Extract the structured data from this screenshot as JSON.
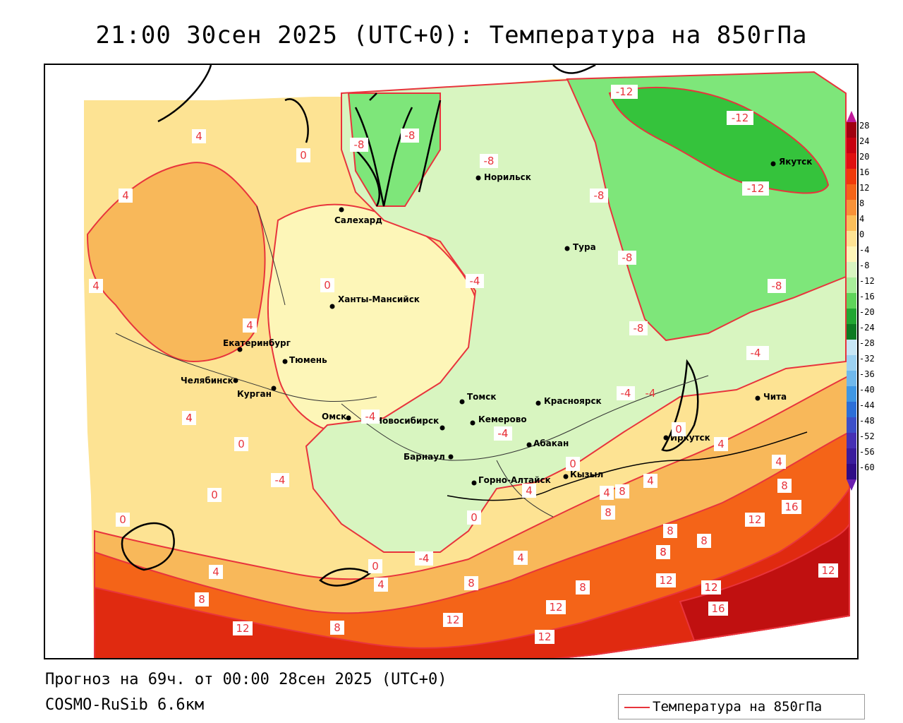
{
  "title": "21:00 30сен 2025 (UTC+0): Температура на 850гПа",
  "forecast": "Прогноз на 69ч. от 00:00 28сен 2025 (UTC+0)",
  "model": "COSMO-RuSib 6.6км",
  "legend": {
    "label": "Температура на 850гПа",
    "color": "#e8343c"
  },
  "colorbar": {
    "ticks": [
      "28",
      "24",
      "20",
      "16",
      "12",
      "8",
      "4",
      "0",
      "-4",
      "-8",
      "-12",
      "-16",
      "-20",
      "-24",
      "-28",
      "-32",
      "-36",
      "-40",
      "-44",
      "-48",
      "-52",
      "-56",
      "-60"
    ],
    "colors": [
      "#a00010",
      "#c80010",
      "#e01010",
      "#f03a0a",
      "#f46418",
      "#f89238",
      "#fbbf5a",
      "#fde393",
      "#fdf6b8",
      "#d8f5c0",
      "#a8ee9a",
      "#5fd45a",
      "#22a632",
      "#0d7a22",
      "#c7e6f5",
      "#9dd2f2",
      "#6fb8ec",
      "#3f97e4",
      "#2c6fd8",
      "#3c4fc8",
      "#4630b4",
      "#3a1c9c",
      "#2e0c86"
    ]
  },
  "cities": [
    {
      "name": "Якутск"
    },
    {
      "name": "Норильск"
    },
    {
      "name": "Салехард"
    },
    {
      "name": "Тура"
    },
    {
      "name": "Ханты-Мансийск"
    },
    {
      "name": "Екатеринбург"
    },
    {
      "name": "Тюмень"
    },
    {
      "name": "Челябинск"
    },
    {
      "name": "Курган"
    },
    {
      "name": "Омск"
    },
    {
      "name": "Новосибирск"
    },
    {
      "name": "Томск"
    },
    {
      "name": "Красноярск"
    },
    {
      "name": "Кемерово"
    },
    {
      "name": "Абакан"
    },
    {
      "name": "Барнаул"
    },
    {
      "name": "Горно-Алтайск"
    },
    {
      "name": "Кызыл"
    },
    {
      "name": "Иркутск"
    },
    {
      "name": "Чита"
    }
  ],
  "isolines": [
    "-12",
    "-12",
    "-12",
    "-8",
    "-8",
    "-8",
    "-8",
    "-8",
    "-8",
    "-8",
    "-8",
    "-4",
    "-4",
    "-4",
    "-4",
    "-4",
    "-4",
    "-4",
    "-4",
    "0",
    "0",
    "0",
    "0",
    "0",
    "0",
    "0",
    "0",
    "0",
    "4",
    "4",
    "4",
    "4",
    "4",
    "4",
    "4",
    "4",
    "4",
    "4",
    "4",
    "4",
    "4",
    "4",
    "8",
    "8",
    "8",
    "8",
    "8",
    "8",
    "8",
    "8",
    "8",
    "8",
    "8",
    "12",
    "12",
    "12",
    "12",
    "12",
    "12",
    "12",
    "12",
    "12",
    "16",
    "16",
    "-4",
    "-4",
    "-4"
  ]
}
